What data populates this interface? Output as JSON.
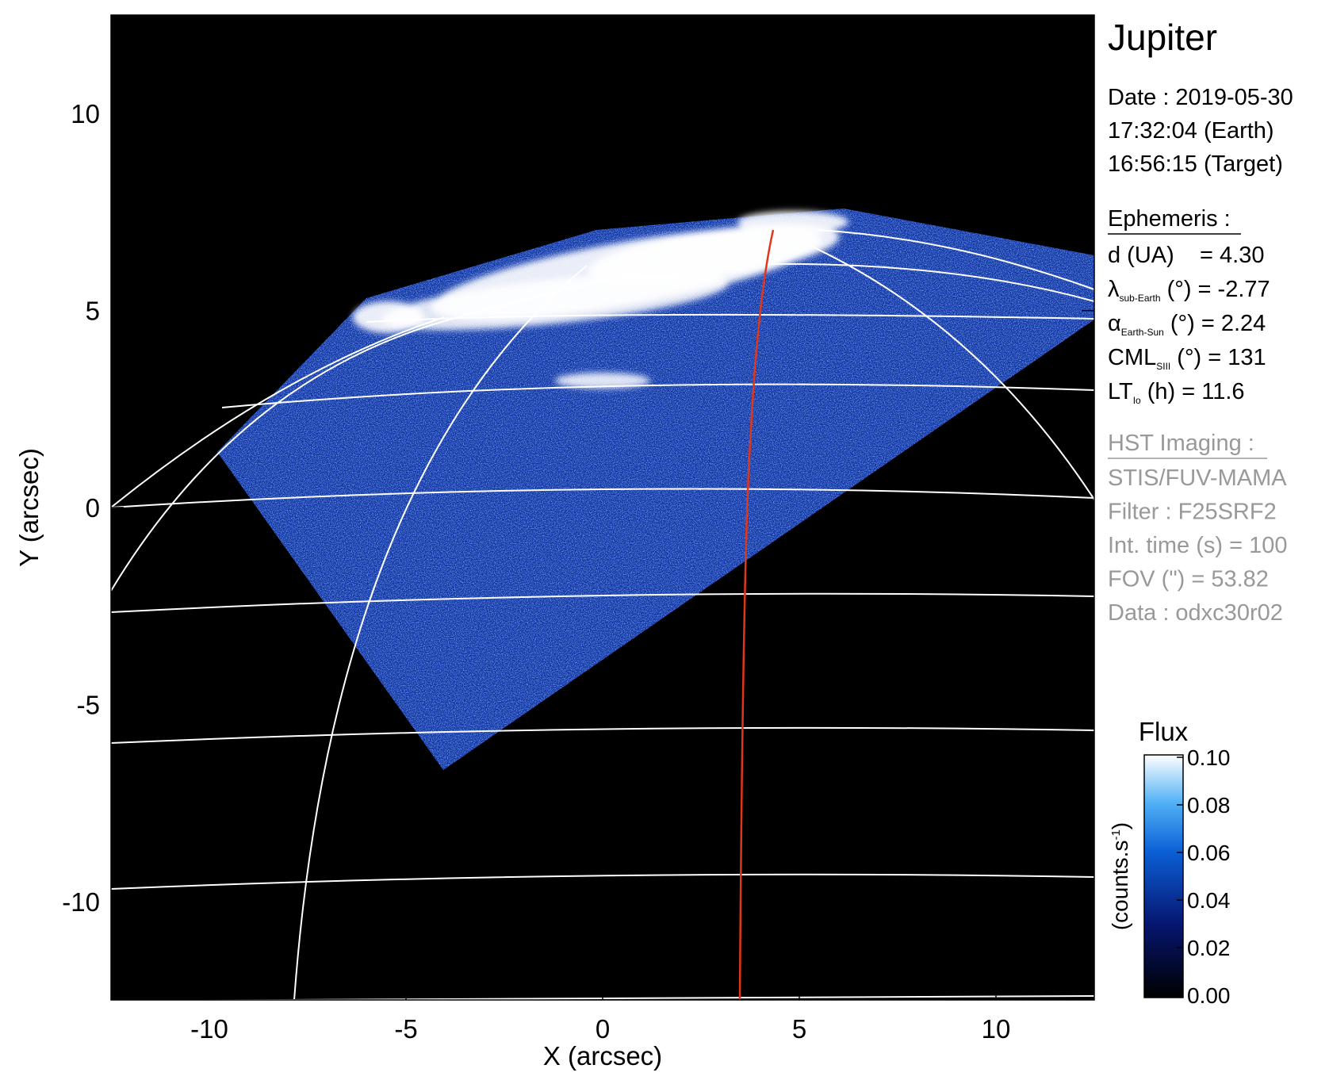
{
  "chart_data": {
    "type": "image",
    "xlabel": "X (arcsec)",
    "ylabel": "Y (arcsec)",
    "xlim": [
      -12.5,
      12.5
    ],
    "ylim": [
      -12.5,
      12.5
    ],
    "xticks": [
      -10,
      -5,
      0,
      5,
      10
    ],
    "yticks": [
      -10,
      -5,
      0,
      5,
      10
    ],
    "colorbar": {
      "title": "Flux",
      "label": {
        "text": "(counts.s",
        "sup": "-1",
        "end": ")"
      },
      "lim": [
        0,
        0.1
      ],
      "ticks": [
        {
          "value": 0,
          "label": "0.00"
        },
        {
          "value": 0.02,
          "label": "0.02"
        },
        {
          "value": 0.04,
          "label": "0.04"
        },
        {
          "value": 0.06,
          "label": "0.06"
        },
        {
          "value": 0.08,
          "label": "0.08"
        },
        {
          "value": 0.1,
          "label": "0.10"
        }
      ]
    },
    "panel": {
      "title": "Jupiter",
      "date_lines": [
        "Date : 2019-05-30",
        "17:32:04 (Earth)",
        "16:56:15 (Target)"
      ],
      "ephemeris_header": "Ephemeris :",
      "ephemeris": [
        {
          "symbol": "d (UA)    = 4.30"
        },
        {
          "symbol": "λ",
          "sub": "sub-Earth",
          "rest": " (°) = -2.77"
        },
        {
          "symbol": "α",
          "sub": "Earth-Sun",
          "rest": " (°) = 2.24"
        },
        {
          "symbol": "CML",
          "sub": "SIII",
          "rest": " (°) = 131"
        },
        {
          "symbol": "LT",
          "sub": "Io",
          "rest": " (h) = 11.6"
        }
      ],
      "imaging_header": "HST Imaging :",
      "imaging": [
        "STIS/FUV-MAMA",
        "Filter : F25SRF2",
        "Int. time (s) = 100",
        "FOV (\") = 53.82",
        "Data : odxc30r02"
      ]
    }
  }
}
